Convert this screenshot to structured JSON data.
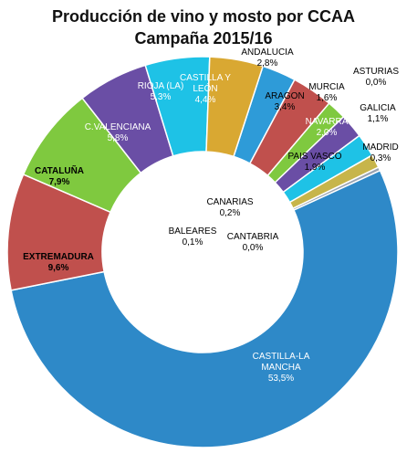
{
  "chart_data": {
    "type": "pie",
    "title": "Producción de vino y mosto por CCAA",
    "subtitle": "Campaña 2015/16",
    "slices": [
      {
        "name": "ANDALUCIA",
        "value_label": "2,8%",
        "value": 2.8,
        "color": "#2e9bd8"
      },
      {
        "name": "ARAGON",
        "value_label": "3,4%",
        "value": 3.4,
        "color": "#c0504d"
      },
      {
        "name": "MURCIA",
        "value_label": "1,6%",
        "value": 1.6,
        "color": "#7fc93f"
      },
      {
        "name": "NAVARRA",
        "value_label": "2,0%",
        "value": 2.0,
        "color": "#6a4ea5"
      },
      {
        "name": "PAIS VASCO",
        "value_label": "1,9%",
        "value": 1.9,
        "color": "#1ec2e6"
      },
      {
        "name": "ASTURIAS",
        "value_label": "0,0%",
        "value": 0.0,
        "color": "#e8a040"
      },
      {
        "name": "GALICIA",
        "value_label": "1,1%",
        "value": 1.1,
        "color": "#c7b54a"
      },
      {
        "name": "MADRID",
        "value_label": "0,3%",
        "value": 0.3,
        "color": "#9aa4b3"
      },
      {
        "name": "CASTILLA-LA MANCHA",
        "value_label": "53,5%",
        "value": 53.5,
        "color": "#2e89c8"
      },
      {
        "name": "EXTREMADURA",
        "value_label": "9,6%",
        "value": 9.6,
        "color": "#c0504d"
      },
      {
        "name": "CATALUÑA",
        "value_label": "7,9%",
        "value": 7.9,
        "color": "#7fc93f"
      },
      {
        "name": "C.VALENCIANA",
        "value_label": "5,8%",
        "value": 5.8,
        "color": "#6a4ea5"
      },
      {
        "name": "RIOJA (LA)",
        "value_label": "5,3%",
        "value": 5.3,
        "color": "#1ec2e6"
      },
      {
        "name": "CASTILLA Y LEÓN",
        "value_label": "4,4%",
        "value": 4.4,
        "color": "#d9a832"
      },
      {
        "name": "CANARIAS",
        "value_label": "0,2%",
        "value": 0.2,
        "color": "#e8a040"
      },
      {
        "name": "BALEARES",
        "value_label": "0,1%",
        "value": 0.1,
        "color": "#4b6eb0"
      },
      {
        "name": "CANTABRIA",
        "value_label": "0,0%",
        "value": 0.0,
        "color": "#9bbb59"
      }
    ]
  }
}
